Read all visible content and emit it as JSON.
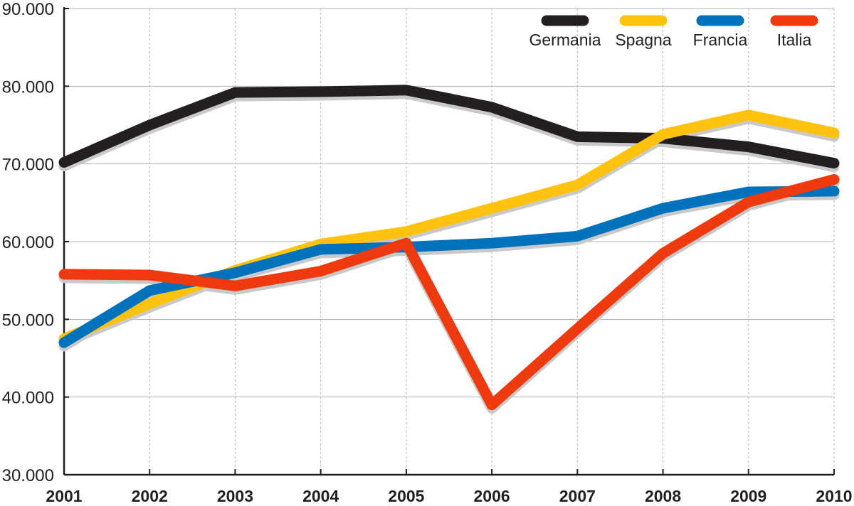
{
  "chart_data": {
    "type": "line",
    "title": "",
    "xlabel": "",
    "ylabel": "",
    "categories": [
      "2001",
      "2002",
      "2003",
      "2004",
      "2005",
      "2006",
      "2007",
      "2008",
      "2009",
      "2010"
    ],
    "ylim": [
      30000,
      90000
    ],
    "yticks": [
      30000,
      40000,
      50000,
      60000,
      70000,
      80000,
      90000
    ],
    "ytick_labels": [
      "30.000",
      "40.000",
      "50.000",
      "60.000",
      "70.000",
      "80.000",
      "90.000"
    ],
    "grid": true,
    "legend_position": "top-right",
    "series": [
      {
        "name": "Germania",
        "color": "#231f20",
        "values": [
          70200,
          75000,
          79200,
          79300,
          79500,
          77300,
          73500,
          73300,
          72200,
          70100
        ]
      },
      {
        "name": "Spagna",
        "color": "#ffc20e",
        "values": [
          47500,
          52000,
          56300,
          59700,
          61300,
          64300,
          67300,
          73800,
          76300,
          74000
        ]
      },
      {
        "name": "Francia",
        "color": "#0072bc",
        "values": [
          47000,
          53700,
          56000,
          59000,
          59300,
          59800,
          60700,
          64300,
          66400,
          66500
        ]
      },
      {
        "name": "Italia",
        "color": "#ef3a0f",
        "values": [
          55800,
          55700,
          54300,
          56200,
          59800,
          39000,
          48800,
          58500,
          65100,
          68000
        ]
      }
    ]
  }
}
